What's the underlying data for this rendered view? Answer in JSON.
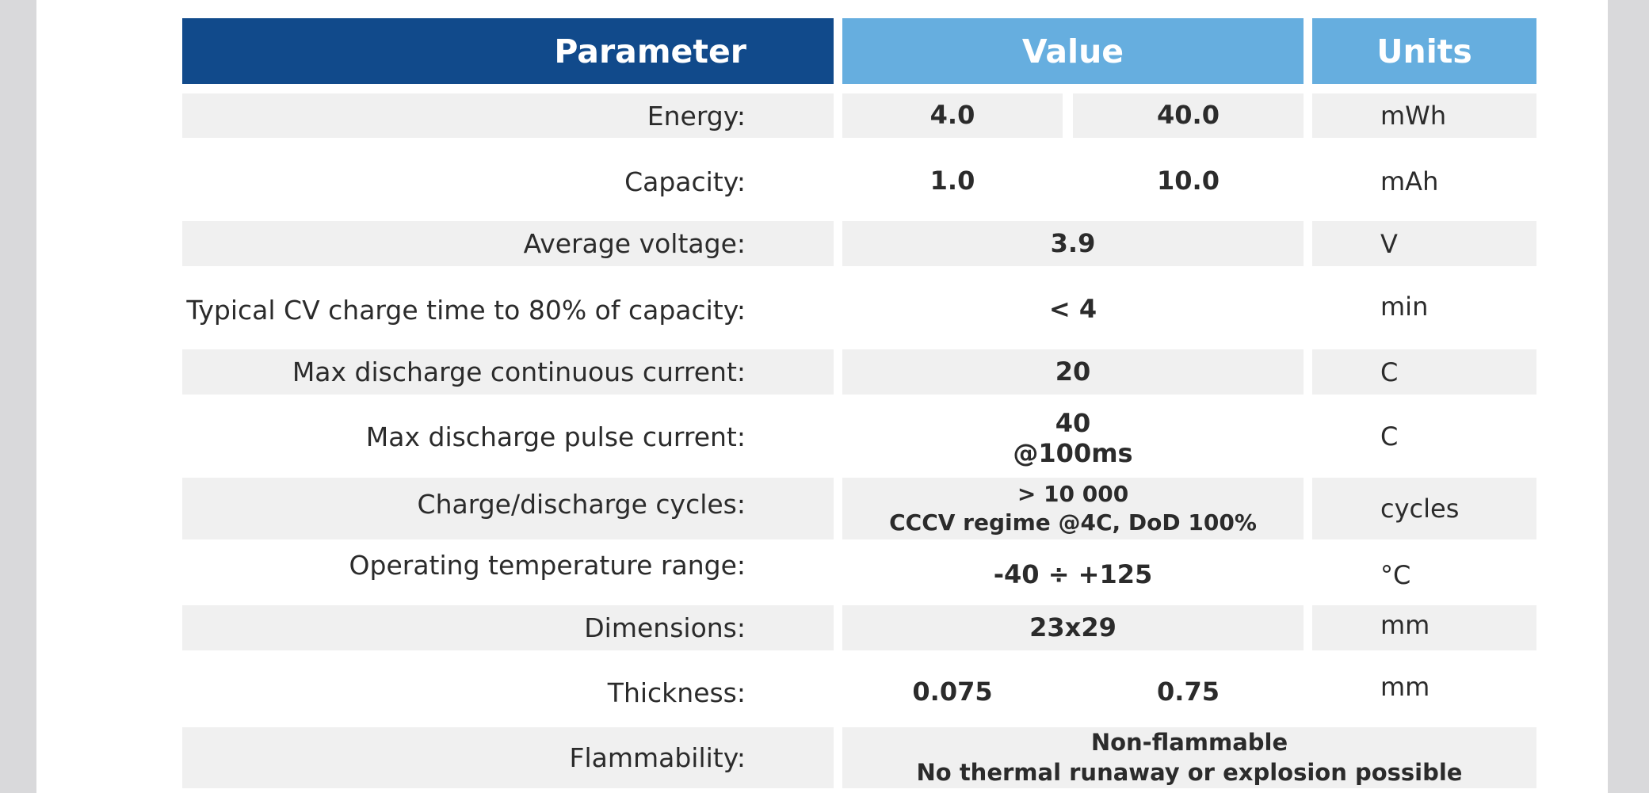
{
  "header": {
    "parameter": "Parameter",
    "value": "Value",
    "units": "Units"
  },
  "rows": [
    {
      "label": "Energy:",
      "value_a": "4.0",
      "value_b": "40.0",
      "unit": "mWh"
    },
    {
      "label": "Capacity:",
      "value_a": "1.0",
      "value_b": "10.0",
      "unit": "mAh"
    },
    {
      "label": "Average voltage:",
      "value": "3.9",
      "unit": "V"
    },
    {
      "label": "Typical CV charge time to 80% of capacity:",
      "value": "< 4",
      "unit": "min"
    },
    {
      "label": "Max discharge continuous current:",
      "value": "20",
      "unit": "C"
    },
    {
      "label": "Max discharge pulse current:",
      "value_line1": "40",
      "value_line2": "@100ms",
      "unit": "C"
    },
    {
      "label": "Charge/discharge cycles:",
      "value_line1": "> 10 000",
      "value_line2": "CCCV regime @4C, DoD 100%",
      "unit": "cycles"
    },
    {
      "label": "Operating temperature range:",
      "value": "-40 ÷ +125",
      "unit": "°C"
    },
    {
      "label": "Dimensions:",
      "value": "23x29",
      "unit": "mm"
    },
    {
      "label": "Thickness:",
      "value_a": "0.075",
      "value_b": "0.75",
      "unit": "mm"
    },
    {
      "label": "Flammability:",
      "value_line1": "Non-flammable",
      "value_line2": "No thermal runaway or explosion possible"
    }
  ],
  "colors": {
    "header_dark": "#114a8b",
    "header_light": "#66aedf",
    "row_band": "#f0f0f0"
  }
}
